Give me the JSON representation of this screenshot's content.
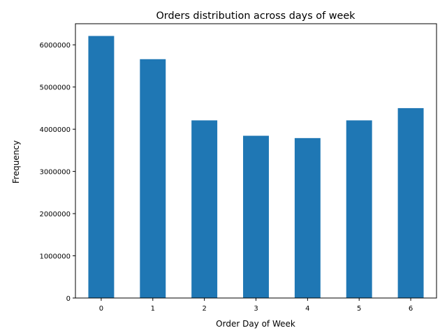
{
  "chart_data": {
    "type": "bar",
    "title": "Orders distribution across days of week",
    "xlabel": "Order Day of Week",
    "ylabel": "Frequency",
    "categories": [
      "0",
      "1",
      "2",
      "3",
      "4",
      "5",
      "6"
    ],
    "values": [
      6210000,
      5660000,
      4210000,
      3845000,
      3790000,
      4210000,
      4500000
    ],
    "ylim": [
      0,
      6500000
    ],
    "yticks": [
      0,
      1000000,
      2000000,
      3000000,
      4000000,
      5000000,
      6000000
    ],
    "ytick_labels": [
      "0",
      "1000000",
      "2000000",
      "3000000",
      "4000000",
      "5000000",
      "6000000"
    ],
    "bar_color": "#1f77b4",
    "grid": false,
    "legend": "none"
  }
}
